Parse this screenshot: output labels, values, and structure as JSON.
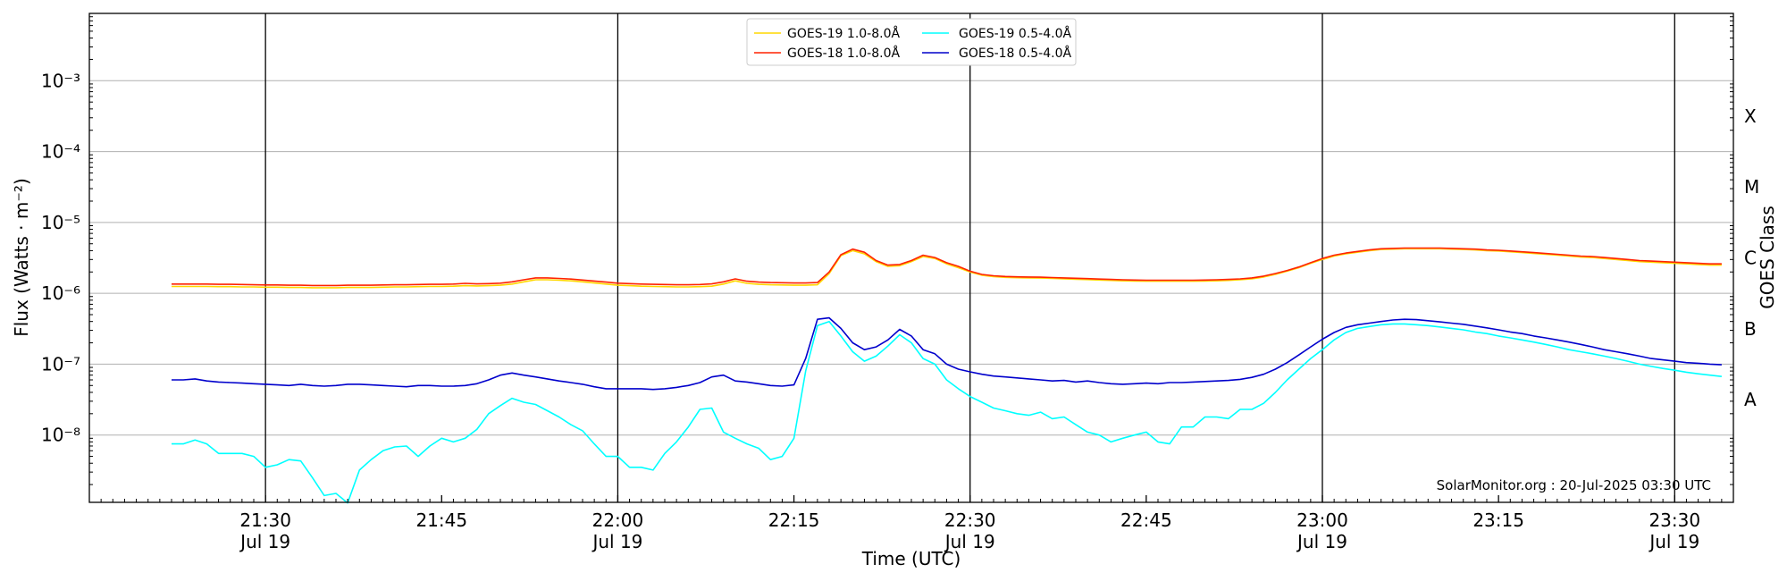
{
  "chart_data": {
    "type": "line",
    "xlabel": "Time (UTC)",
    "ylabel": "Flux (Watts · m⁻²)",
    "right_label": "GOES Class",
    "credit": "SolarMonitor.org : 20-Jul-2025 03:30 UTC",
    "x_unit": "minutes after 21:00 UTC, Jul 19",
    "xlim": [
      15,
      155
    ],
    "yscale": "log",
    "ylim_exp": [
      -8.95,
      -2.05
    ],
    "grid": true,
    "legend_position": "top-center",
    "x_ticks": [
      {
        "t": 30,
        "time": "21:30",
        "date": "Jul 19",
        "major": true
      },
      {
        "t": 45,
        "time": "21:45",
        "date": "",
        "major": false
      },
      {
        "t": 60,
        "time": "22:00",
        "date": "Jul 19",
        "major": true
      },
      {
        "t": 75,
        "time": "22:15",
        "date": "",
        "major": false
      },
      {
        "t": 90,
        "time": "22:30",
        "date": "Jul 19",
        "major": true
      },
      {
        "t": 105,
        "time": "22:45",
        "date": "",
        "major": false
      },
      {
        "t": 120,
        "time": "23:00",
        "date": "Jul 19",
        "major": true
      },
      {
        "t": 135,
        "time": "23:15",
        "date": "",
        "major": false
      },
      {
        "t": 150,
        "time": "23:30",
        "date": "Jul 19",
        "major": true
      }
    ],
    "y_ticks": [
      {
        "exp": -8,
        "label": "10⁻⁸"
      },
      {
        "exp": -7,
        "label": "10⁻⁷"
      },
      {
        "exp": -6,
        "label": "10⁻⁶"
      },
      {
        "exp": -5,
        "label": "10⁻⁵"
      },
      {
        "exp": -4,
        "label": "10⁻⁴"
      },
      {
        "exp": -3,
        "label": "10⁻³"
      }
    ],
    "goes_classes": [
      {
        "label": "A",
        "exp": -7.5
      },
      {
        "label": "B",
        "exp": -6.5
      },
      {
        "label": "C",
        "exp": -5.5
      },
      {
        "label": "M",
        "exp": -4.5
      },
      {
        "label": "X",
        "exp": -3.5
      }
    ],
    "x": [
      22,
      23,
      24,
      25,
      26,
      27,
      28,
      29,
      30,
      31,
      32,
      33,
      34,
      35,
      36,
      37,
      38,
      39,
      40,
      41,
      42,
      43,
      44,
      45,
      46,
      47,
      48,
      49,
      50,
      51,
      52,
      53,
      54,
      55,
      56,
      57,
      58,
      59,
      60,
      61,
      62,
      63,
      64,
      65,
      66,
      67,
      68,
      69,
      70,
      71,
      72,
      73,
      74,
      75,
      76,
      77,
      78,
      79,
      80,
      81,
      82,
      83,
      84,
      85,
      86,
      87,
      88,
      89,
      90,
      91,
      92,
      93,
      94,
      95,
      96,
      97,
      98,
      99,
      100,
      101,
      102,
      103,
      104,
      105,
      106,
      107,
      108,
      109,
      110,
      111,
      112,
      113,
      114,
      115,
      116,
      117,
      118,
      119,
      120,
      121,
      122,
      123,
      124,
      125,
      126,
      127,
      128,
      129,
      130,
      131,
      132,
      133,
      134,
      135,
      136,
      137,
      138,
      139,
      140,
      141,
      142,
      143,
      144,
      145,
      146,
      147,
      148,
      149,
      150,
      151,
      152,
      153,
      154
    ],
    "series": [
      {
        "name": "GOES-19 1.0-8.0Å",
        "color": "#ffd700",
        "values": [
          1.25e-06,
          1.25e-06,
          1.25e-06,
          1.25e-06,
          1.24e-06,
          1.24e-06,
          1.23e-06,
          1.23e-06,
          1.22e-06,
          1.22e-06,
          1.21e-06,
          1.21e-06,
          1.2e-06,
          1.2e-06,
          1.2e-06,
          1.21e-06,
          1.21e-06,
          1.21e-06,
          1.22e-06,
          1.23e-06,
          1.23e-06,
          1.24e-06,
          1.25e-06,
          1.25e-06,
          1.26e-06,
          1.28e-06,
          1.27e-06,
          1.28e-06,
          1.3e-06,
          1.35e-06,
          1.45e-06,
          1.55e-06,
          1.55e-06,
          1.53e-06,
          1.5e-06,
          1.45e-06,
          1.4e-06,
          1.35e-06,
          1.3e-06,
          1.28e-06,
          1.26e-06,
          1.25e-06,
          1.24e-06,
          1.23e-06,
          1.23e-06,
          1.24e-06,
          1.26e-06,
          1.35e-06,
          1.5e-06,
          1.38e-06,
          1.34e-06,
          1.32e-06,
          1.31e-06,
          1.3e-06,
          1.3e-06,
          1.32e-06,
          1.9e-06,
          3.4e-06,
          4e-06,
          3.6e-06,
          2.8e-06,
          2.4e-06,
          2.45e-06,
          2.8e-06,
          3.3e-06,
          3.1e-06,
          2.6e-06,
          2.3e-06,
          2e-06,
          1.8e-06,
          1.72e-06,
          1.68e-06,
          1.66e-06,
          1.65e-06,
          1.64e-06,
          1.62e-06,
          1.6e-06,
          1.58e-06,
          1.56e-06,
          1.54e-06,
          1.52e-06,
          1.5e-06,
          1.49e-06,
          1.48e-06,
          1.48e-06,
          1.48e-06,
          1.48e-06,
          1.48e-06,
          1.49e-06,
          1.5e-06,
          1.52e-06,
          1.55e-06,
          1.6e-06,
          1.7e-06,
          1.85e-06,
          2.05e-06,
          2.3e-06,
          2.65e-06,
          3e-06,
          3.35e-06,
          3.6e-06,
          3.8e-06,
          4e-06,
          4.15e-06,
          4.2e-06,
          4.25e-06,
          4.25e-06,
          4.25e-06,
          4.25e-06,
          4.2e-06,
          4.15e-06,
          4.1e-06,
          4e-06,
          3.95e-06,
          3.85e-06,
          3.75e-06,
          3.65e-06,
          3.55e-06,
          3.45e-06,
          3.35e-06,
          3.25e-06,
          3.2e-06,
          3.1e-06,
          3e-06,
          2.9e-06,
          2.8e-06,
          2.75e-06,
          2.7e-06,
          2.65e-06,
          2.6e-06,
          2.55e-06,
          2.5e-06,
          2.5e-06
        ]
      },
      {
        "name": "GOES-18 1.0-8.0Å",
        "color": "#ff2200",
        "values": [
          1.35e-06,
          1.35e-06,
          1.35e-06,
          1.35e-06,
          1.34e-06,
          1.34e-06,
          1.33e-06,
          1.32e-06,
          1.31e-06,
          1.31e-06,
          1.3e-06,
          1.3e-06,
          1.29e-06,
          1.29e-06,
          1.29e-06,
          1.3e-06,
          1.3e-06,
          1.3e-06,
          1.31e-06,
          1.32e-06,
          1.32e-06,
          1.33e-06,
          1.34e-06,
          1.34e-06,
          1.35e-06,
          1.38e-06,
          1.36e-06,
          1.37e-06,
          1.39e-06,
          1.45e-06,
          1.55e-06,
          1.65e-06,
          1.65e-06,
          1.62e-06,
          1.59e-06,
          1.54e-06,
          1.49e-06,
          1.44e-06,
          1.39e-06,
          1.37e-06,
          1.35e-06,
          1.34e-06,
          1.33e-06,
          1.32e-06,
          1.32e-06,
          1.33e-06,
          1.36e-06,
          1.45e-06,
          1.6e-06,
          1.48e-06,
          1.44e-06,
          1.42e-06,
          1.41e-06,
          1.4e-06,
          1.4e-06,
          1.42e-06,
          2e-06,
          3.5e-06,
          4.2e-06,
          3.8e-06,
          2.9e-06,
          2.5e-06,
          2.55e-06,
          2.9e-06,
          3.45e-06,
          3.2e-06,
          2.7e-06,
          2.4e-06,
          2.05e-06,
          1.85e-06,
          1.77e-06,
          1.73e-06,
          1.71e-06,
          1.7e-06,
          1.69e-06,
          1.67e-06,
          1.65e-06,
          1.63e-06,
          1.61e-06,
          1.59e-06,
          1.57e-06,
          1.55e-06,
          1.54e-06,
          1.53e-06,
          1.53e-06,
          1.53e-06,
          1.53e-06,
          1.53e-06,
          1.54e-06,
          1.55e-06,
          1.57e-06,
          1.6e-06,
          1.65e-06,
          1.75e-06,
          1.9e-06,
          2.1e-06,
          2.35e-06,
          2.7e-06,
          3.1e-06,
          3.45e-06,
          3.7e-06,
          3.9e-06,
          4.1e-06,
          4.25e-06,
          4.3e-06,
          4.35e-06,
          4.35e-06,
          4.35e-06,
          4.35e-06,
          4.3e-06,
          4.25e-06,
          4.2e-06,
          4.1e-06,
          4.05e-06,
          3.95e-06,
          3.85e-06,
          3.75e-06,
          3.65e-06,
          3.55e-06,
          3.45e-06,
          3.35e-06,
          3.3e-06,
          3.2e-06,
          3.1e-06,
          3e-06,
          2.9e-06,
          2.85e-06,
          2.8e-06,
          2.75e-06,
          2.7e-06,
          2.65e-06,
          2.6e-06,
          2.6e-06
        ]
      },
      {
        "name": "GOES-19 0.5-4.0Å",
        "color": "#00ffff",
        "values": [
          7.5e-09,
          7.5e-09,
          8.5e-09,
          7.5e-09,
          5.5e-09,
          5.5e-09,
          5.5e-09,
          5e-09,
          3.5e-09,
          3.8e-09,
          4.5e-09,
          4.3e-09,
          2.5e-09,
          1.4e-09,
          1.5e-09,
          1.1e-09,
          3.2e-09,
          4.5e-09,
          6e-09,
          6.8e-09,
          7e-09,
          5e-09,
          7e-09,
          9e-09,
          8e-09,
          9e-09,
          1.2e-08,
          2e-08,
          2.6e-08,
          3.3e-08,
          2.9e-08,
          2.7e-08,
          2.2e-08,
          1.8e-08,
          1.4e-08,
          1.15e-08,
          7.5e-09,
          5e-09,
          5e-09,
          3.5e-09,
          3.5e-09,
          3.2e-09,
          5.5e-09,
          8e-09,
          1.3e-08,
          2.3e-08,
          2.4e-08,
          1.1e-08,
          9e-09,
          7.5e-09,
          6.5e-09,
          4.5e-09,
          5e-09,
          9e-09,
          8e-08,
          3.5e-07,
          4e-07,
          2.5e-07,
          1.5e-07,
          1.1e-07,
          1.3e-07,
          1.8e-07,
          2.6e-07,
          2e-07,
          1.2e-07,
          1e-07,
          6e-08,
          4.5e-08,
          3.5e-08,
          2.9e-08,
          2.4e-08,
          2.2e-08,
          2e-08,
          1.9e-08,
          2.1e-08,
          1.7e-08,
          1.8e-08,
          1.4e-08,
          1.1e-08,
          1e-08,
          8e-09,
          9e-09,
          1e-08,
          1.1e-08,
          8e-09,
          7.5e-09,
          1.3e-08,
          1.3e-08,
          1.8e-08,
          1.8e-08,
          1.7e-08,
          2.3e-08,
          2.3e-08,
          2.8e-08,
          4e-08,
          6e-08,
          8.5e-08,
          1.2e-07,
          1.6e-07,
          2.2e-07,
          2.8e-07,
          3.2e-07,
          3.4e-07,
          3.6e-07,
          3.7e-07,
          3.7e-07,
          3.6e-07,
          3.5e-07,
          3.35e-07,
          3.2e-07,
          3.05e-07,
          2.85e-07,
          2.7e-07,
          2.5e-07,
          2.35e-07,
          2.2e-07,
          2.05e-07,
          1.9e-07,
          1.75e-07,
          1.6e-07,
          1.5e-07,
          1.4e-07,
          1.3e-07,
          1.2e-07,
          1.1e-07,
          1e-07,
          9.3e-08,
          8.7e-08,
          8.2e-08,
          7.7e-08,
          7.3e-08,
          7e-08,
          6.7e-08
        ]
      },
      {
        "name": "GOES-18 0.5-4.0Å",
        "color": "#0000cc",
        "values": [
          6e-08,
          6e-08,
          6.2e-08,
          5.8e-08,
          5.6e-08,
          5.5e-08,
          5.4e-08,
          5.3e-08,
          5.2e-08,
          5.1e-08,
          5e-08,
          5.2e-08,
          5e-08,
          4.9e-08,
          5e-08,
          5.2e-08,
          5.2e-08,
          5.1e-08,
          5e-08,
          4.9e-08,
          4.8e-08,
          5e-08,
          5e-08,
          4.9e-08,
          4.9e-08,
          5e-08,
          5.3e-08,
          6e-08,
          7e-08,
          7.5e-08,
          7e-08,
          6.6e-08,
          6.2e-08,
          5.8e-08,
          5.5e-08,
          5.2e-08,
          4.8e-08,
          4.5e-08,
          4.5e-08,
          4.5e-08,
          4.5e-08,
          4.4e-08,
          4.5e-08,
          4.7e-08,
          5e-08,
          5.5e-08,
          6.6e-08,
          7e-08,
          5.8e-08,
          5.6e-08,
          5.3e-08,
          5e-08,
          4.9e-08,
          5.1e-08,
          1.2e-07,
          4.3e-07,
          4.5e-07,
          3.2e-07,
          2e-07,
          1.6e-07,
          1.75e-07,
          2.2e-07,
          3.1e-07,
          2.5e-07,
          1.6e-07,
          1.4e-07,
          1e-07,
          8.5e-08,
          7.8e-08,
          7.2e-08,
          6.8e-08,
          6.6e-08,
          6.4e-08,
          6.2e-08,
          6e-08,
          5.8e-08,
          5.9e-08,
          5.6e-08,
          5.8e-08,
          5.5e-08,
          5.3e-08,
          5.2e-08,
          5.3e-08,
          5.4e-08,
          5.3e-08,
          5.5e-08,
          5.5e-08,
          5.6e-08,
          5.7e-08,
          5.8e-08,
          5.9e-08,
          6.1e-08,
          6.5e-08,
          7.2e-08,
          8.5e-08,
          1.05e-07,
          1.35e-07,
          1.75e-07,
          2.25e-07,
          2.8e-07,
          3.3e-07,
          3.6e-07,
          3.8e-07,
          4e-07,
          4.2e-07,
          4.3e-07,
          4.25e-07,
          4.1e-07,
          3.95e-07,
          3.8e-07,
          3.65e-07,
          3.45e-07,
          3.25e-07,
          3.05e-07,
          2.85e-07,
          2.7e-07,
          2.5e-07,
          2.35e-07,
          2.2e-07,
          2.05e-07,
          1.9e-07,
          1.75e-07,
          1.6e-07,
          1.5e-07,
          1.4e-07,
          1.3e-07,
          1.2e-07,
          1.15e-07,
          1.1e-07,
          1.05e-07,
          1.03e-07,
          1e-07,
          9.8e-08
        ]
      }
    ]
  }
}
